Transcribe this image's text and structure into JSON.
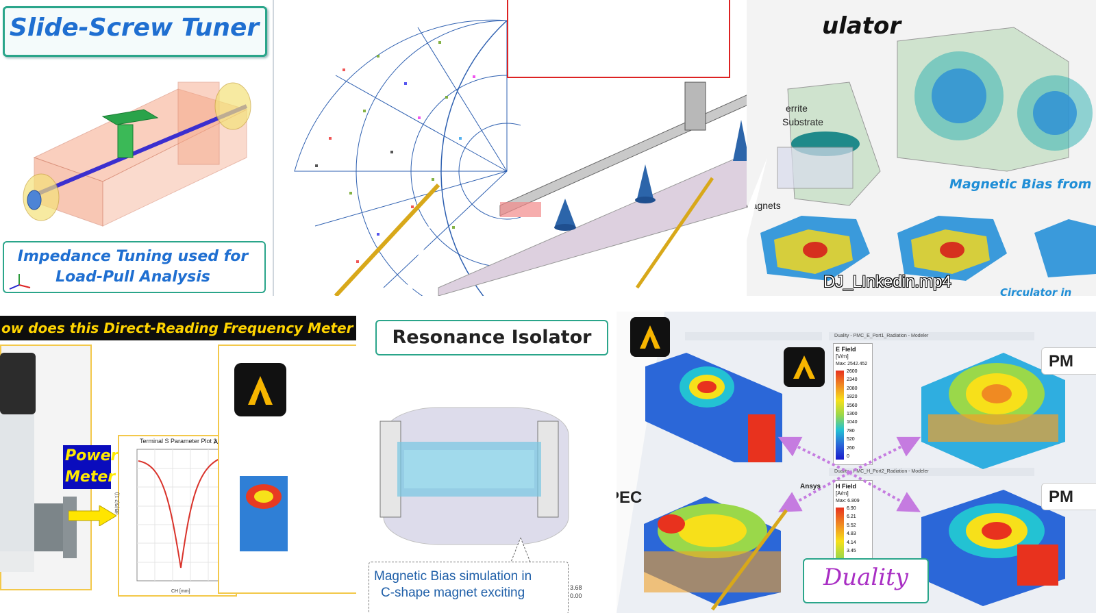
{
  "slide_screw": {
    "title": "Slide-Screw Tuner",
    "caption_line1": "Impedance Tuning used for",
    "caption_line2": "Load-Pull Analysis"
  },
  "circulator": {
    "title_fragment": "ulator",
    "label_ferrite": "errite",
    "label_substrate": "Substrate",
    "label_magnets": "Magnets",
    "magnetic_bias": "Magnetic Bias from",
    "file_label": "DJ_LInkedin.mp4",
    "bottom_fragment": "Circulator in"
  },
  "freq_meter": {
    "banner": "ow does this Direct-Reading Frequency Meter wor",
    "power_meter_line1": "Power",
    "power_meter_line2": "Meter",
    "plot_title": "Terminal S Parameter Plot 3",
    "plot_brand": "Ansys",
    "plot_ylabel": "dB(S(2,1))",
    "plot_xlabel": "CH [mm]"
  },
  "isolator": {
    "title": "Resonance Isolator",
    "caption_line1": "Magnetic Bias simulation in",
    "caption_line2": "C-shape magnet exciting",
    "corner_val1": "3.68",
    "corner_val2": "0.00"
  },
  "duality": {
    "efield_window": "Duality - PMC_E_Port1_Radiation - Modeler",
    "hfield_window": "Duality - PMC_H_Port2_Radiation - Modeler",
    "efield_label": "E Field",
    "efield_unit": "[V/m]",
    "efield_max": "Max: 2542.452",
    "efield_ticks": [
      "2600",
      "2340",
      "2080",
      "1820",
      "1560",
      "1300",
      "1040",
      "780",
      "520",
      "260",
      "0"
    ],
    "hfield_label": "H Field",
    "hfield_unit": "[A/m]",
    "hfield_max": "Max: 6.809",
    "hfield_ticks": [
      "6.90",
      "6.21",
      "5.52",
      "4.83",
      "4.14",
      "3.45"
    ],
    "label_pm_top": "PM",
    "label_pm_bottom": "PM",
    "label_pec": "PEC",
    "brand": "Ansys",
    "caption": "Duality"
  },
  "colors": {
    "ansys_bg": "#111111",
    "ansys_accent": "#f7b500",
    "title_blue": "#1f6fd1",
    "frame_teal": "#2aa58a",
    "arrow_violet": "#c57be0"
  }
}
